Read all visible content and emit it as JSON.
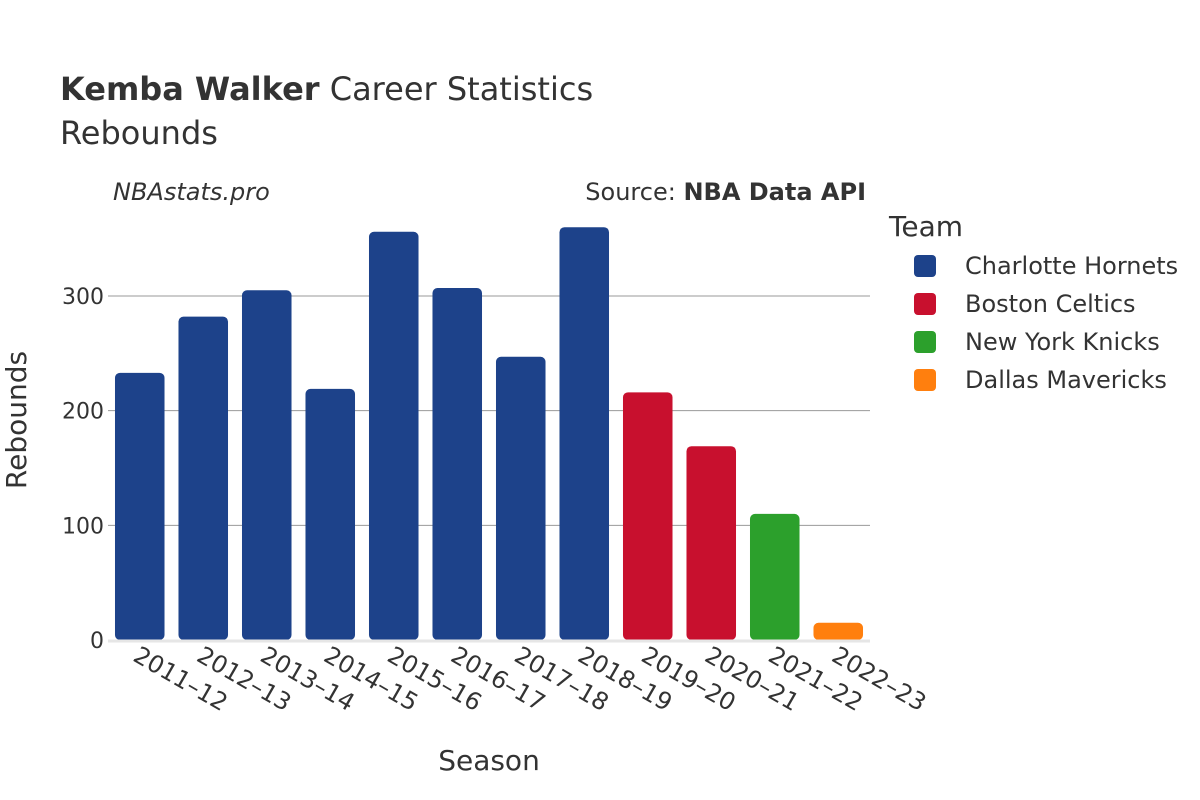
{
  "chart_data": {
    "type": "bar",
    "title_player": "Kemba Walker",
    "title_rest": " Career Statistics",
    "subtitle": "Rebounds",
    "watermark": "NBAstats.pro",
    "source_prefix": "Source: ",
    "source_name": "NBA Data API",
    "xlabel": "Season",
    "ylabel": "Rebounds",
    "ylim": [
      0,
      375
    ],
    "yticks": [
      0,
      100,
      200,
      300
    ],
    "grid": true,
    "legend_title": "Team",
    "legend_position": "right",
    "categories": [
      "2011–12",
      "2012–13",
      "2013–14",
      "2014–15",
      "2015–16",
      "2016–17",
      "2017–18",
      "2018–19",
      "2019–20",
      "2020–21",
      "2021–22",
      "2022–23"
    ],
    "series": [
      {
        "name": "Charlotte Hornets",
        "color": "#1d428a",
        "values": [
          233,
          282,
          305,
          219,
          356,
          307,
          247,
          360,
          null,
          null,
          null,
          null
        ]
      },
      {
        "name": "Boston Celtics",
        "color": "#c8102e",
        "values": [
          null,
          null,
          null,
          null,
          null,
          null,
          null,
          null,
          216,
          169,
          null,
          null
        ]
      },
      {
        "name": "New York Knicks",
        "color": "#2ca02c",
        "values": [
          null,
          null,
          null,
          null,
          null,
          null,
          null,
          null,
          null,
          null,
          110,
          null
        ]
      },
      {
        "name": "Dallas Mavericks",
        "color": "#ff7f0e",
        "values": [
          null,
          null,
          null,
          null,
          null,
          null,
          null,
          null,
          null,
          null,
          null,
          15
        ]
      }
    ]
  }
}
